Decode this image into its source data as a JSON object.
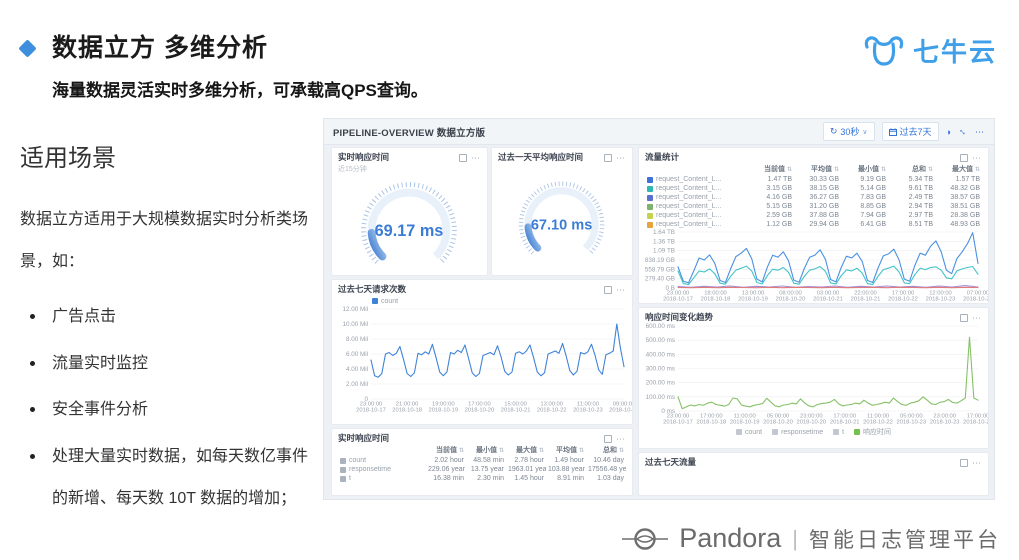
{
  "slide": {
    "title": "数据立方 多维分析",
    "subtitle": "海量数据灵活实时多维分析，可承载高QPS查询。"
  },
  "brand": {
    "logo_text": "七牛云"
  },
  "left": {
    "heading": "适用场景",
    "intro": "数据立方适用于大规模数据实时分析类场景，如：",
    "bullets": [
      "广告点击",
      "流量实时监控",
      "安全事件分析",
      "处理大量实时数据，如每天数亿事件的新增、每天数 10T 数据的增加；"
    ]
  },
  "dashboard": {
    "title": "PIPELINE-OVERVIEW 数据立方版",
    "toolbar": {
      "refresh_label": "30秒",
      "range_label": "过去7天"
    },
    "gauges": [
      {
        "title": "实时响应时间",
        "subtitle": "近15分钟",
        "value": "69.17 ms"
      },
      {
        "title": "过去一天平均响应时间",
        "subtitle": "",
        "value": "67.10 ms"
      }
    ],
    "traffic_panel": {
      "title": "流量统计",
      "columns": [
        "当前值",
        "平均值",
        "最小值",
        "总和",
        "最大值"
      ],
      "rows": [
        {
          "color": "#3f72d9",
          "label": "request_Content_L...",
          "values": [
            "1.47 TB",
            "30.33 GB",
            "9.19 GB",
            "5.34 TB",
            "1.57 TB"
          ]
        },
        {
          "color": "#2db7b5",
          "label": "request_Content_L...",
          "values": [
            "3.15 GB",
            "38.15 GB",
            "5.14 GB",
            "9.61 TB",
            "48.32 GB"
          ]
        },
        {
          "color": "#5b6fd0",
          "label": "request_Content_L...",
          "values": [
            "4.16 GB",
            "36.27 GB",
            "7.83 GB",
            "2.49 TB",
            "38.57 GB"
          ]
        },
        {
          "color": "#7eb26d",
          "label": "request_Content_L...",
          "values": [
            "5.15 GB",
            "31.20 GB",
            "8.85 GB",
            "2.94 TB",
            "38.51 GB"
          ]
        },
        {
          "color": "#c2d34f",
          "label": "request_Content_L...",
          "values": [
            "2.59 GB",
            "37.88 GB",
            "7.94 GB",
            "2.97 TB",
            "28.38 GB"
          ]
        },
        {
          "color": "#e8a33d",
          "label": "request_Content_L...",
          "values": [
            "1.12 GB",
            "29.94 GB",
            "6.41 GB",
            "8.51 TB",
            "48.93 GB"
          ]
        }
      ]
    },
    "requests_panel": {
      "title": "过去七天请求次数"
    },
    "response_panel": {
      "title": "响应时间变化趋势"
    },
    "realtime_panel": {
      "title": "实时响应时间",
      "columns": [
        "当前值",
        "最小值",
        "最大值",
        "平均值",
        "总和"
      ],
      "rows": [
        {
          "color": "#aab2bd",
          "label": "count",
          "values": [
            "2.02 hour",
            "48.58 min",
            "2.78 hour",
            "1.49 hour",
            "10.46 day"
          ]
        },
        {
          "color": "#aab2bd",
          "label": "responsetime",
          "values": [
            "229.06 year",
            "13.75 year",
            "1963.01 year",
            "103.88 year",
            "17556.48 year"
          ]
        },
        {
          "color": "#aab2bd",
          "label": "t",
          "values": [
            "16.38 min",
            "2.30 min",
            "1.45 hour",
            "8.91 min",
            "1.03 day"
          ]
        }
      ]
    },
    "traffic7_panel": {
      "title": "过去七天流量"
    }
  },
  "footer": {
    "brand": "Pandora",
    "divider": "|",
    "product": "智能日志管理平台"
  },
  "chart_data": [
    {
      "id": "traffic",
      "type": "line",
      "title": "流量统计",
      "ymax": 1.64,
      "yticks": [
        "1.64 TB",
        "1.36 TB",
        "1.09 TB",
        "838.19 GB",
        "558.79 GB",
        "279.40 GB",
        "0 B"
      ],
      "xticks": [
        [
          "23:00:00",
          "2018-10-17"
        ],
        [
          "18:00:00",
          "2018-10-18"
        ],
        [
          "13:00:00",
          "2018-10-19"
        ],
        [
          "08:00:00",
          "2018-10-20"
        ],
        [
          "03:00:00",
          "2018-10-21"
        ],
        [
          "22:00:00",
          "2018-10-21"
        ],
        [
          "17:00:00",
          "2018-10-22"
        ],
        [
          "12:00:00",
          "2018-10-23"
        ],
        [
          "07:00:00",
          "2018-10-24"
        ]
      ],
      "legend": [],
      "series": [
        {
          "name": "request_Content_Length",
          "color": "#4a90e2",
          "values": [
            0.62,
            0.2,
            0.15,
            0.5,
            0.88,
            0.82,
            0.97,
            0.72,
            0.22,
            0.16,
            0.56,
            0.92,
            1.02,
            1.16,
            0.86,
            0.26,
            0.18,
            0.62,
            0.96,
            0.9,
            1.06,
            0.8,
            0.23,
            0.17,
            0.57,
            0.9,
            0.96,
            1.12,
            0.84,
            0.25,
            0.18,
            0.6,
            0.93,
            0.88,
            1.02,
            0.78,
            0.22,
            0.16,
            0.58,
            0.94,
            1.0,
            1.14,
            0.82,
            0.26,
            0.2,
            0.66,
            1.02,
            0.96,
            1.22,
            1.38,
            1.06,
            0.52,
            0.42,
            0.86,
            1.06,
            1.3,
            1.62,
            0.72
          ]
        },
        {
          "name": "request_Content_Length_2",
          "color": "#43c3c9",
          "values": [
            0.5,
            0.13,
            0.1,
            0.3,
            0.5,
            0.47,
            0.56,
            0.42,
            0.14,
            0.11,
            0.34,
            0.52,
            0.58,
            0.64,
            0.5,
            0.16,
            0.12,
            0.37,
            0.55,
            0.52,
            0.6,
            0.46,
            0.14,
            0.11,
            0.34,
            0.52,
            0.56,
            0.63,
            0.49,
            0.15,
            0.12,
            0.36,
            0.53,
            0.5,
            0.58,
            0.44,
            0.13,
            0.1,
            0.34,
            0.54,
            0.58,
            0.64,
            0.47,
            0.15,
            0.13,
            0.39,
            0.58,
            0.54,
            0.6,
            0.62,
            0.52,
            0.3,
            0.27,
            0.5,
            0.56,
            0.6,
            0.63,
            0.4
          ]
        },
        {
          "name": "request_Content_Length_3",
          "color": "#a58fd8",
          "values": [
            0.04,
            0.02,
            0.05,
            0.03,
            0.06,
            0.02,
            0.05,
            0.03,
            0.06,
            0.02,
            0.04,
            0.03,
            0.06,
            0.02,
            0.05,
            0.03,
            0.06,
            0.03,
            0.05,
            0.02,
            0.06,
            0.03,
            0.07,
            0.03
          ]
        },
        {
          "name": "request_Content_Length_4",
          "color": "#e07b7b",
          "values": [
            0.015,
            0.01,
            0.02,
            0.01,
            0.02,
            0.015,
            0.01,
            0.02,
            0.01,
            0.02,
            0.015,
            0.01,
            0.02,
            0.01,
            0.015,
            0.02,
            0.01,
            0.02,
            0.015,
            0.01,
            0.02,
            0.01,
            0.02,
            0.015
          ]
        }
      ]
    },
    {
      "id": "requests",
      "type": "line",
      "title": "过去七天请求次数",
      "ymax": 12,
      "yticks": [
        "12.00 Mil",
        "10.00 Mil",
        "8.00 Mil",
        "6.00 Mil",
        "4.00 Mil",
        "2.00 Mil",
        "0"
      ],
      "xticks": [
        [
          "23:00:00",
          "2018-10-17"
        ],
        [
          "21:00:00",
          "2018-10-18"
        ],
        [
          "19:00:00",
          "2018-10-19"
        ],
        [
          "17:00:00",
          "2018-10-20"
        ],
        [
          "15:00:00",
          "2018-10-21"
        ],
        [
          "13:00:00",
          "2018-10-22"
        ],
        [
          "11:00:00",
          "2018-10-23"
        ],
        [
          "09:00:00",
          "2018-10-24"
        ]
      ],
      "legend": [
        {
          "label": "count",
          "color": "#3f83d8"
        }
      ],
      "series": [
        {
          "name": "count",
          "color": "#3f83d8",
          "values": [
            5.2,
            3.1,
            2.9,
            3.4,
            6.0,
            6.2,
            5.8,
            6.1,
            7.0,
            5.3,
            3.4,
            3.0,
            3.5,
            6.1,
            5.9,
            6.3,
            6.0,
            7.3,
            5.5,
            3.6,
            3.1,
            3.6,
            6.2,
            6.0,
            6.5,
            6.2,
            7.2,
            5.4,
            3.5,
            3.0,
            3.4,
            5.8,
            6.0,
            6.2,
            5.9,
            7.1,
            5.6,
            3.7,
            3.2,
            3.6,
            6.1,
            6.3,
            6.0,
            6.4,
            7.2,
            5.5,
            3.6,
            3.1,
            3.5,
            6.0,
            6.2,
            6.4,
            6.1,
            7.4,
            5.7,
            3.8,
            3.2,
            3.7,
            6.2,
            6.0,
            6.3,
            7.3,
            5.8,
            3.9,
            3.3,
            5.9,
            6.1,
            6.4,
            10.0,
            6.8,
            4.3
          ]
        }
      ]
    },
    {
      "id": "response",
      "type": "line",
      "title": "响应时间变化趋势",
      "ymax": 600,
      "yticks": [
        "600.00 ms",
        "500.00 ms",
        "400.00 ms",
        "300.00 ms",
        "200.00 ms",
        "100.00 ms",
        "0 ms"
      ],
      "xticks": [
        [
          "23:00:00",
          "2018-10-17"
        ],
        [
          "17:00:00",
          "2018-10-18"
        ],
        [
          "11:00:00",
          "2018-10-19"
        ],
        [
          "05:00:00",
          "2018-10-20"
        ],
        [
          "23:00:00",
          "2018-10-20"
        ],
        [
          "17:00:00",
          "2018-10-21"
        ],
        [
          "11:00:00",
          "2018-10-22"
        ],
        [
          "05:00:00",
          "2018-10-23"
        ],
        [
          "23:00:00",
          "2018-10-23"
        ],
        [
          "17:00:00",
          "2018-10-24"
        ]
      ],
      "legend": [
        {
          "label": "count",
          "color": "#c3c8d0"
        },
        {
          "label": "responsetime",
          "color": "#c3c8d0"
        },
        {
          "label": "t",
          "color": "#c3c8d0"
        },
        {
          "label": "响应时间",
          "color": "#72c04e"
        }
      ],
      "series": [
        {
          "name": "响应时间",
          "color": "#86c166",
          "values": [
            100,
            16,
            30,
            42,
            36,
            46,
            40,
            56,
            62,
            46,
            40,
            34,
            46,
            92,
            86,
            42,
            34,
            30,
            40,
            46,
            52,
            90,
            62,
            36,
            30,
            42,
            46,
            56,
            50,
            86,
            56,
            36,
            30,
            46,
            52,
            56,
            62,
            82,
            50,
            36,
            42,
            46,
            56,
            50,
            76,
            56,
            40,
            46,
            52,
            62,
            56,
            92,
            66,
            46,
            40,
            56,
            62,
            72,
            100,
            76,
            50,
            46,
            62,
            66,
            82,
            60,
            56,
            72,
            92,
            520,
            92,
            76
          ]
        }
      ]
    }
  ]
}
